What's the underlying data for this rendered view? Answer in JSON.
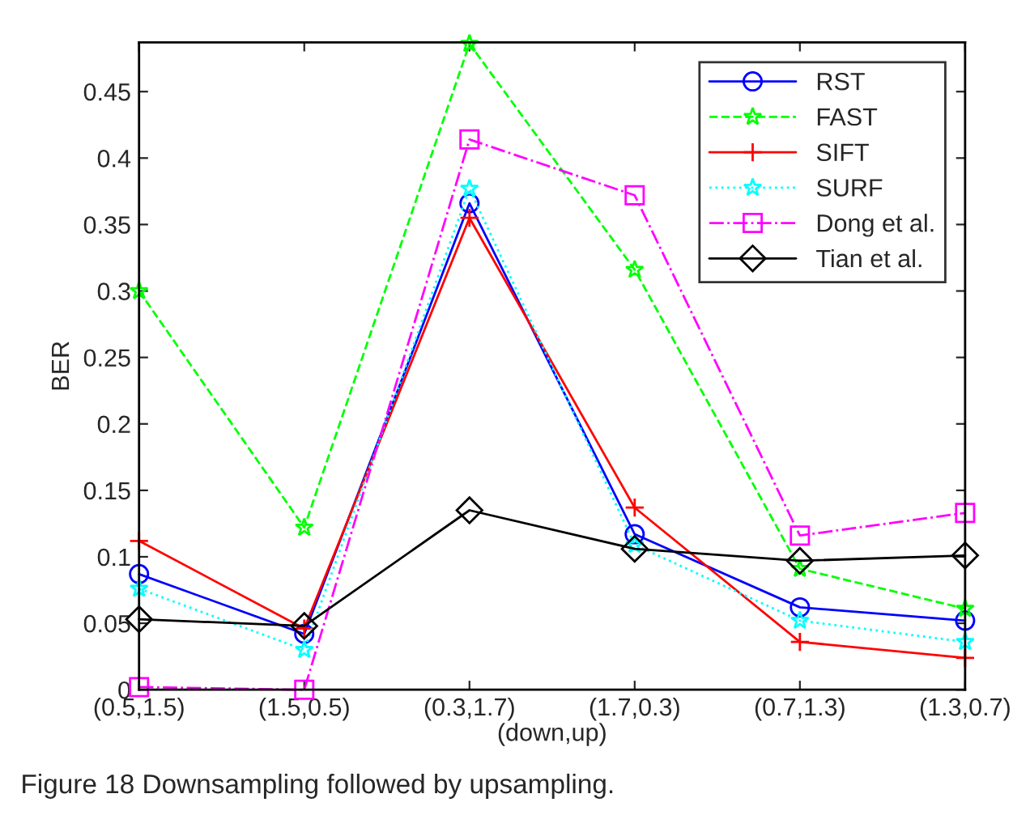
{
  "chart_data": {
    "type": "line",
    "xlabel": "(down,up)",
    "ylabel": "BER",
    "categories": [
      "(0.5,1.5)",
      "(1.5,0.5)",
      "(0.3,1.7)",
      "(1.7,0.3)",
      "(0.7,1.3)",
      "(1.3,0.7)"
    ],
    "ylim": [
      0,
      0.487
    ],
    "yticks": [
      0,
      0.05,
      {
        "value": 0.1,
        "label": "0.1"
      },
      0.15,
      {
        "value": 0.2,
        "label": "0.2"
      },
      0.25,
      {
        "value": 0.3,
        "label": "0.3"
      },
      0.35,
      {
        "value": 0.4,
        "label": "0.4"
      },
      0.45
    ],
    "grid": false,
    "legend": "top right",
    "series": [
      {
        "name": "RST",
        "color": "#0000ff",
        "marker": "circle",
        "line_style": "solid",
        "values": [
          0.087,
          0.042,
          0.366,
          0.117,
          0.062,
          0.052
        ]
      },
      {
        "name": "FAST",
        "color": "#00ff00",
        "marker": "star",
        "line_style": "dashed",
        "values": [
          0.3,
          0.122,
          0.486,
          0.316,
          0.091,
          0.061
        ]
      },
      {
        "name": "SIFT",
        "color": "#ff0000",
        "marker": "cross",
        "line_style": "solid",
        "values": [
          0.112,
          0.046,
          0.355,
          0.137,
          0.036,
          0.024
        ]
      },
      {
        "name": "SURF",
        "color": "#00ffff",
        "marker": "star",
        "line_style": "dotted",
        "values": [
          0.076,
          0.03,
          0.377,
          0.109,
          0.052,
          0.036
        ]
      },
      {
        "name": "Dong et al.",
        "color": "#ff00ff",
        "marker": "square",
        "line_style": "dashdot",
        "values": [
          0.002,
          0.0,
          0.414,
          0.372,
          0.116,
          0.133
        ]
      },
      {
        "name": "Tian et al.",
        "color": "#000000",
        "marker": "diamond",
        "line_style": "solid",
        "values": [
          0.053,
          0.048,
          0.135,
          0.106,
          0.097,
          0.101
        ]
      }
    ],
    "annotations": [
      "Figure 18 Downsampling followed by upsampling."
    ]
  }
}
